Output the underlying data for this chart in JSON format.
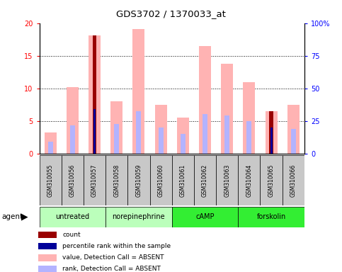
{
  "title": "GDS3702 / 1370033_at",
  "samples": [
    "GSM310055",
    "GSM310056",
    "GSM310057",
    "GSM310058",
    "GSM310059",
    "GSM310060",
    "GSM310061",
    "GSM310062",
    "GSM310063",
    "GSM310064",
    "GSM310065",
    "GSM310066"
  ],
  "value_bars": [
    3.3,
    10.2,
    18.1,
    8.0,
    19.1,
    7.5,
    5.5,
    16.5,
    13.8,
    11.0,
    6.5,
    7.5
  ],
  "rank_bars": [
    1.8,
    4.3,
    0,
    4.6,
    6.5,
    4.0,
    3.0,
    6.1,
    5.9,
    5.0,
    0,
    3.8
  ],
  "count_bars": [
    0,
    0,
    18.1,
    0,
    0,
    0,
    0,
    0,
    0,
    0,
    6.5,
    0
  ],
  "percentile_bars": [
    0,
    0,
    6.8,
    0,
    0,
    0,
    0,
    0,
    0,
    0,
    4.0,
    0
  ],
  "ylim": [
    0,
    20
  ],
  "yticks": [
    0,
    5,
    10,
    15,
    20
  ],
  "ytick_labels_left": [
    "0",
    "5",
    "10",
    "15",
    "20"
  ],
  "ytick_labels_right": [
    "0",
    "25",
    "50",
    "75",
    "100%"
  ],
  "value_color": "#ffb3b3",
  "rank_color": "#b3b3ff",
  "count_color": "#990000",
  "percentile_color": "#000099",
  "group_defs": [
    {
      "start": 0,
      "end": 2,
      "label": "untreated",
      "color": "#bbffbb"
    },
    {
      "start": 3,
      "end": 5,
      "label": "norepinephrine",
      "color": "#bbffbb"
    },
    {
      "start": 6,
      "end": 8,
      "label": "cAMP",
      "color": "#33ee33"
    },
    {
      "start": 9,
      "end": 11,
      "label": "forskolin",
      "color": "#33ee33"
    }
  ],
  "legend_items": [
    {
      "color": "#990000",
      "label": "count"
    },
    {
      "color": "#000099",
      "label": "percentile rank within the sample"
    },
    {
      "color": "#ffb3b3",
      "label": "value, Detection Call = ABSENT"
    },
    {
      "color": "#b3b3ff",
      "label": "rank, Detection Call = ABSENT"
    }
  ]
}
